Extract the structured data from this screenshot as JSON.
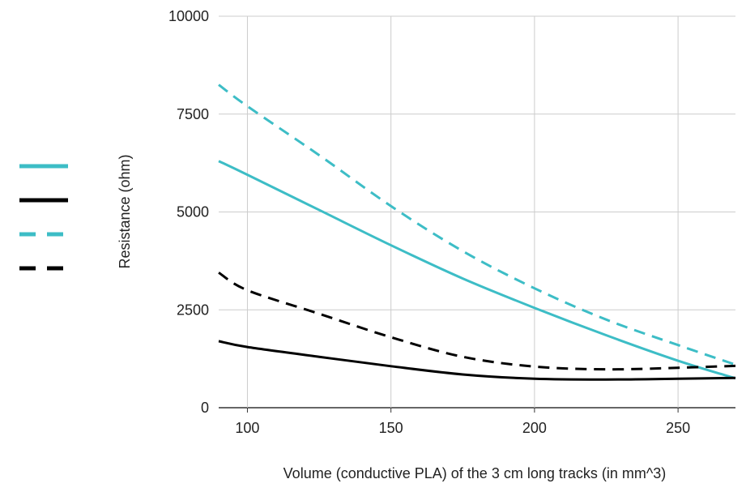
{
  "chart_data": {
    "type": "line",
    "title": "",
    "xlabel": "Volume (conductive PLA) of the 3 cm long tracks (in mm^3)",
    "ylabel": "Resistance (ohm)",
    "xlim": [
      90,
      270
    ],
    "ylim": [
      0,
      10000
    ],
    "xticks": [
      100,
      150,
      200,
      250
    ],
    "yticks": [
      0,
      2500,
      5000,
      7500,
      10000
    ],
    "grid": true,
    "legend": "left, unlabeled line samples",
    "x": [
      90,
      100,
      125,
      150,
      175,
      200,
      225,
      250,
      270
    ],
    "series": [
      {
        "color": "#3dbdc6",
        "dash": "solid",
        "values": [
          6300,
          5950,
          5050,
          4150,
          3300,
          2550,
          1850,
          1200,
          750
        ]
      },
      {
        "color": "#000000",
        "dash": "solid",
        "values": [
          1700,
          1550,
          1300,
          1060,
          850,
          740,
          720,
          740,
          760
        ]
      },
      {
        "color": "#3dbdc6",
        "dash": "dashed",
        "values": [
          8250,
          7700,
          6450,
          5150,
          4000,
          3050,
          2250,
          1600,
          1100
        ]
      },
      {
        "color": "#000000",
        "dash": "dashed",
        "values": [
          3450,
          3000,
          2400,
          1800,
          1300,
          1050,
          980,
          1020,
          1070
        ]
      }
    ]
  }
}
